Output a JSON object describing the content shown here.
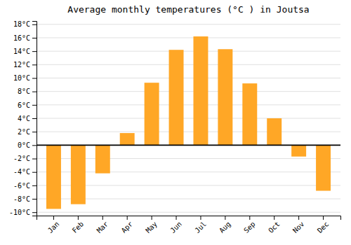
{
  "chart_data": {
    "type": "bar",
    "title": "Average monthly temperatures (°C ) in Joutsa",
    "categories": [
      "Jan",
      "Feb",
      "Mar",
      "Apr",
      "May",
      "Jun",
      "Jul",
      "Aug",
      "Sep",
      "Oct",
      "Nov",
      "Dec"
    ],
    "values": [
      -9.5,
      -8.8,
      -4.2,
      1.8,
      9.3,
      14.2,
      16.2,
      14.3,
      9.2,
      4.0,
      -1.7,
      -6.8
    ],
    "color": "#FFA726",
    "ylim": [
      -10.5,
      18.5
    ],
    "yticks": [
      {
        "value": -10,
        "label": "-10°C"
      },
      {
        "value": -8,
        "label": "-8°C"
      },
      {
        "value": -6,
        "label": "-6°C"
      },
      {
        "value": -4,
        "label": "-4°C"
      },
      {
        "value": -2,
        "label": "-2°C"
      },
      {
        "value": 0,
        "label": "0°C"
      },
      {
        "value": 2,
        "label": "2°C"
      },
      {
        "value": 4,
        "label": "4°C"
      },
      {
        "value": 6,
        "label": "6°C"
      },
      {
        "value": 8,
        "label": "8°C"
      },
      {
        "value": 10,
        "label": "10°C"
      },
      {
        "value": 12,
        "label": "12°C"
      },
      {
        "value": 14,
        "label": "14°C"
      },
      {
        "value": 16,
        "label": "16°C"
      },
      {
        "value": 18,
        "label": "18°C"
      }
    ],
    "grid": true
  }
}
